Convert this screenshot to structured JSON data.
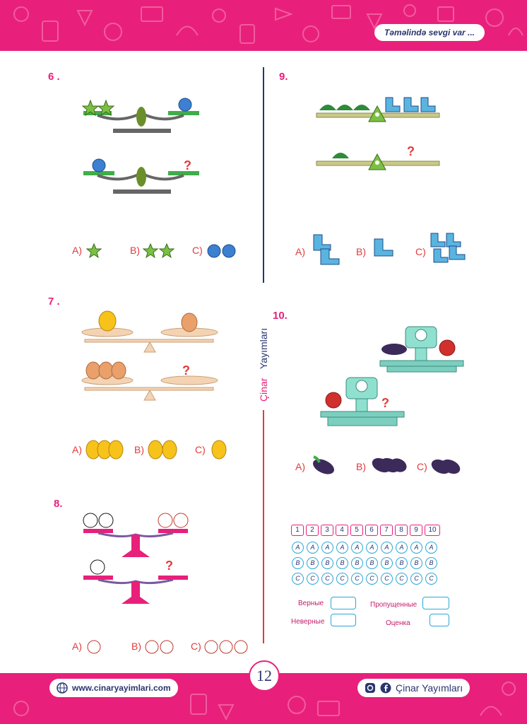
{
  "header": {
    "slogan": "Təməlində sevgi var ..."
  },
  "footer": {
    "website": "www.cinaryayimlari.com",
    "brand": "Çinar Yayımları",
    "page_number": "12"
  },
  "side_brand": {
    "word1": "Çinar",
    "word2": "Yayımları"
  },
  "questions": [
    {
      "number": "6 .",
      "options": [
        "A)",
        "B)",
        "C)"
      ]
    },
    {
      "number": "7 .",
      "options": [
        "A)",
        "B)",
        "C)"
      ]
    },
    {
      "number": "8.",
      "options": [
        "A)",
        "B)",
        "C)"
      ]
    },
    {
      "number": "9.",
      "options": [
        "A)",
        "B)",
        "C)"
      ]
    },
    {
      "number": "10.",
      "options": [
        "A)",
        "B)",
        "C)"
      ]
    }
  ],
  "question_mark": "?",
  "answer_sheet": {
    "numbers": [
      "1",
      "2",
      "3",
      "4",
      "5",
      "6",
      "7",
      "8",
      "9",
      "10"
    ],
    "letters": [
      "A",
      "B",
      "C"
    ],
    "labels": {
      "correct": "Верные",
      "wrong": "Неверные",
      "skipped": "Пропущенные",
      "grade": "Оценка"
    }
  },
  "colors": {
    "brand": "#e8207b",
    "navy": "#2a3570",
    "answer_red": "#e23b3b",
    "circle_blue": "#2aa8d8"
  }
}
